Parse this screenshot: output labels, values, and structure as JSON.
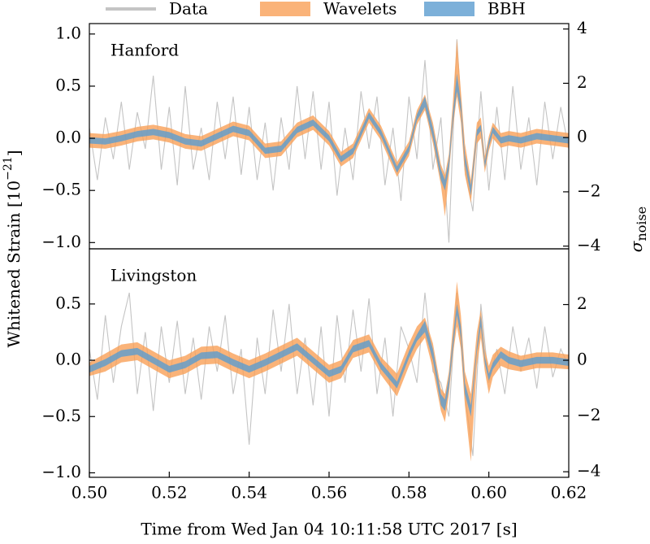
{
  "chart_data": [
    {
      "type": "line",
      "title": "Hanford",
      "ylabel": {
        "text": "Whitened Strain [10",
        "exponent": "−21",
        "close": "]"
      },
      "y2label": {
        "symbol": "σ",
        "subscript": "noise"
      },
      "xlim": [
        0.5,
        0.62
      ],
      "ylim": [
        -1.06,
        1.1
      ],
      "y2lim": [
        -4.1,
        4.2
      ],
      "yticks": [
        {
          "value": -1.0,
          "label": "−1.0"
        },
        {
          "value": -0.5,
          "label": "−0.5"
        },
        {
          "value": 0.0,
          "label": "0.0"
        },
        {
          "value": 0.5,
          "label": "0.5"
        },
        {
          "value": 1.0,
          "label": "1.0"
        }
      ],
      "y2ticks": [
        {
          "value": -4,
          "label": "−4"
        },
        {
          "value": -2,
          "label": "−2"
        },
        0,
        2,
        4
      ],
      "series": [
        {
          "name": "Data",
          "color": "#c4c4c4",
          "x": [
            0.5,
            0.502,
            0.504,
            0.506,
            0.508,
            0.51,
            0.512,
            0.514,
            0.516,
            0.518,
            0.52,
            0.522,
            0.524,
            0.526,
            0.528,
            0.53,
            0.532,
            0.534,
            0.536,
            0.538,
            0.54,
            0.542,
            0.544,
            0.546,
            0.548,
            0.55,
            0.552,
            0.554,
            0.556,
            0.558,
            0.56,
            0.562,
            0.564,
            0.566,
            0.568,
            0.57,
            0.572,
            0.574,
            0.576,
            0.578,
            0.58,
            0.582,
            0.584,
            0.586,
            0.588,
            0.59,
            0.592,
            0.594,
            0.596,
            0.598,
            0.6,
            0.602,
            0.604,
            0.606,
            0.608,
            0.61,
            0.612,
            0.614,
            0.616,
            0.618,
            0.62
          ],
          "values": [
            0.1,
            -0.4,
            0.2,
            -0.2,
            0.35,
            -0.3,
            0.25,
            -0.1,
            0.6,
            -0.3,
            0.3,
            -0.45,
            0.5,
            -0.3,
            0.1,
            -0.4,
            0.35,
            -0.2,
            0.4,
            -0.35,
            0.3,
            -0.4,
            0.15,
            -0.5,
            0.2,
            -0.3,
            0.5,
            -0.2,
            0.45,
            -0.3,
            0.35,
            -0.55,
            0.1,
            -0.4,
            0.45,
            -0.1,
            0.4,
            -0.45,
            0.1,
            -0.6,
            0.4,
            -0.2,
            0.75,
            -0.3,
            0.2,
            -1.0,
            0.95,
            -0.3,
            -0.7,
            0.45,
            -0.5,
            0.3,
            -0.4,
            0.5,
            -0.3,
            0.2,
            -0.45,
            0.35,
            -0.2,
            0.3,
            -0.1
          ]
        },
        {
          "name": "Wavelets",
          "color": "#f9a058",
          "x": [
            0.5,
            0.504,
            0.508,
            0.512,
            0.516,
            0.52,
            0.524,
            0.528,
            0.532,
            0.536,
            0.54,
            0.544,
            0.548,
            0.552,
            0.556,
            0.56,
            0.563,
            0.566,
            0.57,
            0.573,
            0.577,
            0.58,
            0.582,
            0.584,
            0.586,
            0.588,
            0.589,
            0.59,
            0.591,
            0.592,
            0.593,
            0.594,
            0.5955,
            0.597,
            0.598,
            0.599,
            0.6,
            0.601,
            0.603,
            0.605,
            0.608,
            0.612,
            0.616,
            0.62
          ],
          "lower": [
            -0.09,
            -0.1,
            -0.07,
            -0.03,
            -0.01,
            -0.04,
            -0.1,
            -0.12,
            -0.05,
            0.02,
            -0.02,
            -0.19,
            -0.17,
            0.01,
            0.08,
            -0.07,
            -0.27,
            -0.19,
            0.15,
            -0.02,
            -0.37,
            -0.17,
            0.13,
            0.27,
            -0.05,
            -0.45,
            -0.75,
            -0.35,
            0.1,
            0.4,
            0.15,
            -0.35,
            -0.62,
            -0.05,
            0.0,
            -0.33,
            -0.12,
            0.0,
            -0.09,
            -0.07,
            -0.09,
            -0.05,
            -0.07,
            -0.09
          ],
          "upper": [
            0.05,
            0.04,
            0.07,
            0.11,
            0.13,
            0.1,
            0.04,
            0.02,
            0.09,
            0.16,
            0.12,
            -0.05,
            -0.03,
            0.15,
            0.22,
            0.07,
            -0.13,
            -0.05,
            0.29,
            0.12,
            -0.23,
            -0.03,
            0.27,
            0.42,
            0.15,
            -0.25,
            -0.35,
            -0.15,
            0.35,
            0.95,
            0.45,
            -0.05,
            -0.4,
            0.15,
            0.2,
            -0.17,
            0.02,
            0.15,
            0.05,
            0.07,
            0.05,
            0.09,
            0.07,
            0.05
          ]
        },
        {
          "name": "BBH",
          "color": "#5b9ccf",
          "x": [
            0.5,
            0.504,
            0.508,
            0.512,
            0.516,
            0.52,
            0.524,
            0.528,
            0.532,
            0.536,
            0.54,
            0.544,
            0.548,
            0.552,
            0.556,
            0.56,
            0.563,
            0.566,
            0.57,
            0.573,
            0.577,
            0.58,
            0.582,
            0.584,
            0.586,
            0.588,
            0.589,
            0.59,
            0.591,
            0.592,
            0.593,
            0.594,
            0.5955,
            0.597,
            0.598,
            0.599,
            0.6,
            0.601,
            0.603,
            0.605,
            0.608,
            0.612,
            0.616,
            0.62
          ],
          "lower": [
            -0.05,
            -0.06,
            -0.03,
            0.01,
            0.03,
            0.0,
            -0.06,
            -0.08,
            -0.01,
            0.06,
            0.02,
            -0.15,
            -0.13,
            0.05,
            0.12,
            -0.03,
            -0.23,
            -0.15,
            0.19,
            0.02,
            -0.33,
            -0.13,
            0.17,
            0.3,
            0.0,
            -0.4,
            -0.5,
            -0.3,
            0.15,
            0.45,
            0.25,
            -0.25,
            -0.55,
            0.02,
            0.07,
            -0.28,
            -0.08,
            0.05,
            -0.05,
            -0.03,
            -0.05,
            -0.01,
            -0.03,
            -0.05
          ],
          "upper": [
            0.01,
            0.0,
            0.03,
            0.07,
            0.09,
            0.06,
            0.0,
            -0.02,
            0.05,
            0.12,
            0.08,
            -0.09,
            -0.07,
            0.11,
            0.18,
            0.03,
            -0.17,
            -0.09,
            0.25,
            0.08,
            -0.27,
            -0.07,
            0.23,
            0.4,
            0.1,
            -0.3,
            -0.4,
            -0.2,
            0.25,
            0.62,
            0.35,
            -0.15,
            -0.45,
            0.08,
            0.13,
            -0.22,
            -0.02,
            0.11,
            0.01,
            0.03,
            0.01,
            0.05,
            0.03,
            0.01
          ]
        }
      ]
    },
    {
      "type": "line",
      "title": "Livingston",
      "xlabel": "Time from Wed Jan 04 10:11:58 UTC 2017 [s]",
      "xlim": [
        0.5,
        0.62
      ],
      "ylim": [
        -1.04,
        0.99
      ],
      "y2lim": [
        -4.2,
        4.0
      ],
      "xticks": [
        {
          "value": 0.5,
          "label": "0.50"
        },
        {
          "value": 0.52,
          "label": "0.52"
        },
        {
          "value": 0.54,
          "label": "0.54"
        },
        {
          "value": 0.56,
          "label": "0.56"
        },
        {
          "value": 0.58,
          "label": "0.58"
        },
        {
          "value": 0.6,
          "label": "0.60"
        },
        {
          "value": 0.62,
          "label": "0.62"
        }
      ],
      "yticks": [
        {
          "value": -1.0,
          "label": "−1.0"
        },
        {
          "value": -0.5,
          "label": "−0.5"
        },
        {
          "value": 0.0,
          "label": "0.0"
        },
        {
          "value": 0.5,
          "label": "0.5"
        }
      ],
      "y2ticks": [
        {
          "value": -4,
          "label": "−4"
        },
        {
          "value": -2,
          "label": "−2"
        },
        0,
        2
      ],
      "series": [
        {
          "color": "#c4c4c4",
          "x": [
            0.5,
            0.502,
            0.504,
            0.506,
            0.508,
            0.51,
            0.512,
            0.514,
            0.516,
            0.518,
            0.52,
            0.522,
            0.524,
            0.526,
            0.528,
            0.53,
            0.532,
            0.534,
            0.536,
            0.538,
            0.54,
            0.542,
            0.544,
            0.546,
            0.548,
            0.55,
            0.552,
            0.554,
            0.556,
            0.558,
            0.56,
            0.562,
            0.564,
            0.566,
            0.568,
            0.57,
            0.572,
            0.574,
            0.576,
            0.578,
            0.58,
            0.582,
            0.584,
            0.586,
            0.588,
            0.59,
            0.592,
            0.594,
            0.596,
            0.598,
            0.6,
            0.602,
            0.604,
            0.606,
            0.608,
            0.61,
            0.612,
            0.614,
            0.616,
            0.618,
            0.62
          ],
          "values": [
            0.1,
            -0.35,
            0.4,
            -0.2,
            0.3,
            0.6,
            -0.3,
            0.25,
            -0.45,
            0.3,
            -0.2,
            0.35,
            -0.3,
            0.2,
            -0.35,
            0.3,
            -0.1,
            0.4,
            -0.3,
            0.1,
            -0.75,
            0.2,
            -0.3,
            0.45,
            -0.1,
            0.5,
            -0.3,
            0.2,
            -0.4,
            0.3,
            -0.5,
            0.4,
            -0.2,
            0.45,
            -0.1,
            0.55,
            -0.3,
            0.2,
            -0.5,
            0.3,
            0.1,
            -0.2,
            0.6,
            -0.1,
            -0.2,
            -0.5,
            0.6,
            -0.3,
            -0.85,
            0.5,
            -0.2,
            0.1,
            -0.3,
            0.3,
            -0.1,
            0.2,
            -0.25,
            0.3,
            -0.15,
            0.1,
            -0.05
          ]
        },
        {
          "color": "#f9a058",
          "x": [
            0.5,
            0.504,
            0.508,
            0.512,
            0.516,
            0.52,
            0.524,
            0.528,
            0.532,
            0.536,
            0.54,
            0.544,
            0.548,
            0.552,
            0.556,
            0.56,
            0.563,
            0.566,
            0.57,
            0.573,
            0.577,
            0.58,
            0.582,
            0.584,
            0.586,
            0.588,
            0.589,
            0.59,
            0.591,
            0.592,
            0.593,
            0.594,
            0.5955,
            0.597,
            0.598,
            0.599,
            0.6,
            0.601,
            0.603,
            0.605,
            0.608,
            0.612,
            0.616,
            0.62
          ],
          "lower": [
            -0.14,
            -0.1,
            -0.02,
            0.0,
            -0.08,
            -0.16,
            -0.12,
            -0.04,
            -0.03,
            -0.1,
            -0.16,
            -0.1,
            -0.03,
            0.04,
            -0.08,
            -0.2,
            -0.16,
            0.02,
            0.07,
            -0.13,
            -0.32,
            -0.05,
            0.1,
            0.2,
            -0.08,
            -0.45,
            -0.55,
            -0.3,
            0.05,
            0.3,
            0.1,
            -0.4,
            -0.9,
            -0.05,
            0.2,
            -0.1,
            -0.3,
            -0.15,
            -0.05,
            -0.08,
            -0.1,
            -0.07,
            -0.07,
            -0.08
          ],
          "upper": [
            -0.02,
            0.06,
            0.14,
            0.16,
            0.08,
            0.0,
            0.04,
            0.12,
            0.13,
            0.06,
            0.0,
            0.06,
            0.13,
            0.2,
            0.08,
            -0.04,
            0.0,
            0.18,
            0.23,
            0.03,
            -0.12,
            0.15,
            0.3,
            0.38,
            0.15,
            -0.25,
            -0.3,
            -0.1,
            0.3,
            0.7,
            0.4,
            -0.1,
            -0.3,
            0.25,
            0.45,
            0.1,
            -0.05,
            0.05,
            0.12,
            0.08,
            0.04,
            0.07,
            0.07,
            0.05
          ]
        },
        {
          "color": "#5b9ccf",
          "x": [
            0.5,
            0.504,
            0.508,
            0.512,
            0.516,
            0.52,
            0.524,
            0.528,
            0.532,
            0.536,
            0.54,
            0.544,
            0.548,
            0.552,
            0.556,
            0.56,
            0.563,
            0.566,
            0.57,
            0.573,
            0.577,
            0.58,
            0.582,
            0.584,
            0.586,
            0.588,
            0.589,
            0.59,
            0.591,
            0.592,
            0.593,
            0.594,
            0.5955,
            0.597,
            0.598,
            0.599,
            0.6,
            0.601,
            0.603,
            0.605,
            0.608,
            0.612,
            0.616,
            0.62
          ],
          "lower": [
            -0.11,
            -0.05,
            0.03,
            0.05,
            -0.03,
            -0.11,
            -0.07,
            0.01,
            0.02,
            -0.05,
            -0.11,
            -0.05,
            0.02,
            0.09,
            -0.03,
            -0.15,
            -0.11,
            0.07,
            0.12,
            -0.08,
            -0.25,
            0.02,
            0.17,
            0.25,
            0.0,
            -0.4,
            -0.45,
            -0.25,
            0.1,
            0.4,
            0.2,
            -0.3,
            -0.5,
            0.07,
            0.3,
            -0.03,
            -0.18,
            -0.08,
            0.02,
            -0.03,
            -0.06,
            -0.03,
            -0.03,
            -0.05
          ],
          "upper": [
            -0.05,
            0.01,
            0.09,
            0.11,
            0.03,
            -0.05,
            -0.01,
            0.07,
            0.08,
            0.01,
            -0.05,
            0.01,
            0.08,
            0.15,
            0.03,
            -0.09,
            -0.05,
            0.13,
            0.18,
            -0.02,
            -0.19,
            0.08,
            0.23,
            0.35,
            0.1,
            -0.3,
            -0.35,
            -0.15,
            0.2,
            0.5,
            0.3,
            -0.2,
            -0.4,
            0.13,
            0.4,
            0.03,
            -0.12,
            -0.02,
            0.08,
            0.03,
            0.0,
            0.03,
            0.03,
            0.01
          ]
        }
      ]
    }
  ]
}
